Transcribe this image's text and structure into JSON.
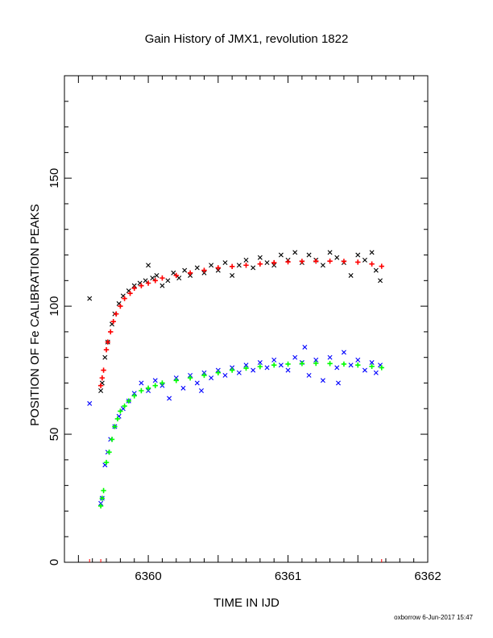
{
  "chart_data": {
    "type": "scatter",
    "title": "Gain History of JMX1, revolution 1822",
    "xlabel": "TIME IN IJD",
    "ylabel": "POSITION OF Fe CALIBRATION PEAKS",
    "xlim": [
      6359.4,
      6362.0
    ],
    "ylim": [
      0,
      190
    ],
    "x_tick_labels": [
      "6360",
      "6361",
      "6362"
    ],
    "y_tick_labels": [
      "0",
      "50",
      "100",
      "150"
    ],
    "grid": false,
    "series": [
      {
        "marker": "x",
        "color": "#000000",
        "points": [
          [
            6359.58,
            103
          ],
          [
            6359.66,
            67
          ],
          [
            6359.67,
            70
          ],
          [
            6359.69,
            80
          ],
          [
            6359.71,
            86
          ],
          [
            6359.74,
            93
          ],
          [
            6359.76,
            97
          ],
          [
            6359.79,
            101
          ],
          [
            6359.82,
            104
          ],
          [
            6359.86,
            106
          ],
          [
            6359.9,
            108
          ],
          [
            6359.94,
            109
          ],
          [
            6359.98,
            110
          ],
          [
            6360.0,
            116
          ],
          [
            6360.03,
            111
          ],
          [
            6360.06,
            112
          ],
          [
            6360.1,
            108
          ],
          [
            6360.14,
            110
          ],
          [
            6360.18,
            113
          ],
          [
            6360.22,
            111
          ],
          [
            6360.26,
            114
          ],
          [
            6360.3,
            112
          ],
          [
            6360.35,
            115
          ],
          [
            6360.4,
            113
          ],
          [
            6360.45,
            116
          ],
          [
            6360.5,
            114
          ],
          [
            6360.55,
            117
          ],
          [
            6360.6,
            112
          ],
          [
            6360.65,
            116
          ],
          [
            6360.7,
            118
          ],
          [
            6360.75,
            115
          ],
          [
            6360.8,
            119
          ],
          [
            6360.85,
            117
          ],
          [
            6360.9,
            116
          ],
          [
            6360.95,
            120
          ],
          [
            6361.0,
            118
          ],
          [
            6361.05,
            121
          ],
          [
            6361.1,
            117
          ],
          [
            6361.15,
            120
          ],
          [
            6361.2,
            118
          ],
          [
            6361.25,
            116
          ],
          [
            6361.3,
            121
          ],
          [
            6361.35,
            119
          ],
          [
            6361.4,
            117
          ],
          [
            6361.45,
            112
          ],
          [
            6361.5,
            120
          ],
          [
            6361.55,
            118
          ],
          [
            6361.6,
            121
          ],
          [
            6361.63,
            114
          ],
          [
            6361.66,
            110
          ]
        ]
      },
      {
        "marker": "+",
        "color": "#ff0000",
        "points": [
          [
            6359.66,
            69
          ],
          [
            6359.67,
            72
          ],
          [
            6359.68,
            75
          ],
          [
            6359.7,
            83
          ],
          [
            6359.71,
            86
          ],
          [
            6359.73,
            90
          ],
          [
            6359.75,
            94
          ],
          [
            6359.77,
            97
          ],
          [
            6359.8,
            100
          ],
          [
            6359.83,
            103
          ],
          [
            6359.87,
            105
          ],
          [
            6359.9,
            107
          ],
          [
            6359.95,
            108
          ],
          [
            6360.0,
            109
          ],
          [
            6360.05,
            110
          ],
          [
            6360.1,
            111
          ],
          [
            6360.2,
            112
          ],
          [
            6360.3,
            113
          ],
          [
            6360.4,
            114
          ],
          [
            6360.5,
            115
          ],
          [
            6360.6,
            115.5
          ],
          [
            6360.7,
            116
          ],
          [
            6360.8,
            116.5
          ],
          [
            6360.9,
            117
          ],
          [
            6361.0,
            117.3
          ],
          [
            6361.1,
            117.5
          ],
          [
            6361.2,
            117.6
          ],
          [
            6361.3,
            117.6
          ],
          [
            6361.4,
            117.5
          ],
          [
            6361.5,
            117.2
          ],
          [
            6361.6,
            116.5
          ],
          [
            6361.67,
            115.6
          ]
        ]
      },
      {
        "marker": "x",
        "color": "#0000ff",
        "points": [
          [
            6359.58,
            62
          ],
          [
            6359.66,
            23
          ],
          [
            6359.67,
            25
          ],
          [
            6359.69,
            38
          ],
          [
            6359.71,
            43
          ],
          [
            6359.73,
            48
          ],
          [
            6359.76,
            53
          ],
          [
            6359.79,
            57
          ],
          [
            6359.82,
            60
          ],
          [
            6359.86,
            63
          ],
          [
            6359.9,
            66
          ],
          [
            6359.95,
            70
          ],
          [
            6360.0,
            67
          ],
          [
            6360.05,
            71
          ],
          [
            6360.1,
            69
          ],
          [
            6360.15,
            64
          ],
          [
            6360.2,
            72
          ],
          [
            6360.25,
            68
          ],
          [
            6360.3,
            73
          ],
          [
            6360.35,
            70
          ],
          [
            6360.4,
            74
          ],
          [
            6360.45,
            72
          ],
          [
            6360.5,
            75
          ],
          [
            6360.55,
            73
          ],
          [
            6360.6,
            76
          ],
          [
            6360.65,
            74
          ],
          [
            6360.7,
            77
          ],
          [
            6360.75,
            75
          ],
          [
            6360.8,
            78
          ],
          [
            6360.85,
            76
          ],
          [
            6360.9,
            79
          ],
          [
            6360.95,
            77
          ],
          [
            6361.0,
            75
          ],
          [
            6361.05,
            80
          ],
          [
            6361.1,
            78
          ],
          [
            6361.15,
            73
          ],
          [
            6361.2,
            79
          ],
          [
            6361.25,
            71
          ],
          [
            6361.3,
            80
          ],
          [
            6361.35,
            76
          ],
          [
            6361.4,
            82
          ],
          [
            6361.45,
            77
          ],
          [
            6361.5,
            79
          ],
          [
            6361.55,
            75
          ],
          [
            6361.6,
            78
          ],
          [
            6361.63,
            74
          ],
          [
            6361.66,
            77
          ],
          [
            6361.12,
            84
          ],
          [
            6361.36,
            70
          ],
          [
            6360.38,
            67
          ]
        ]
      },
      {
        "marker": "+",
        "color": "#00ff00",
        "points": [
          [
            6359.66,
            22
          ],
          [
            6359.67,
            25
          ],
          [
            6359.68,
            28
          ],
          [
            6359.7,
            39
          ],
          [
            6359.72,
            43
          ],
          [
            6359.74,
            48
          ],
          [
            6359.76,
            53
          ],
          [
            6359.78,
            56
          ],
          [
            6359.8,
            59
          ],
          [
            6359.83,
            61
          ],
          [
            6359.86,
            63
          ],
          [
            6359.9,
            65
          ],
          [
            6359.95,
            67
          ],
          [
            6360.0,
            68
          ],
          [
            6360.05,
            69
          ],
          [
            6360.1,
            70
          ],
          [
            6360.2,
            71
          ],
          [
            6360.3,
            72
          ],
          [
            6360.4,
            73
          ],
          [
            6360.5,
            74
          ],
          [
            6360.6,
            75
          ],
          [
            6360.7,
            75.8
          ],
          [
            6360.8,
            76.4
          ],
          [
            6360.9,
            77
          ],
          [
            6361.0,
            77.4
          ],
          [
            6361.1,
            77.6
          ],
          [
            6361.2,
            77.7
          ],
          [
            6361.3,
            77.6
          ],
          [
            6361.4,
            77.4
          ],
          [
            6361.5,
            77
          ],
          [
            6361.6,
            76.5
          ],
          [
            6361.67,
            76
          ]
        ]
      }
    ],
    "footer": "oxborrow  6-Jun-2017 15:47"
  }
}
